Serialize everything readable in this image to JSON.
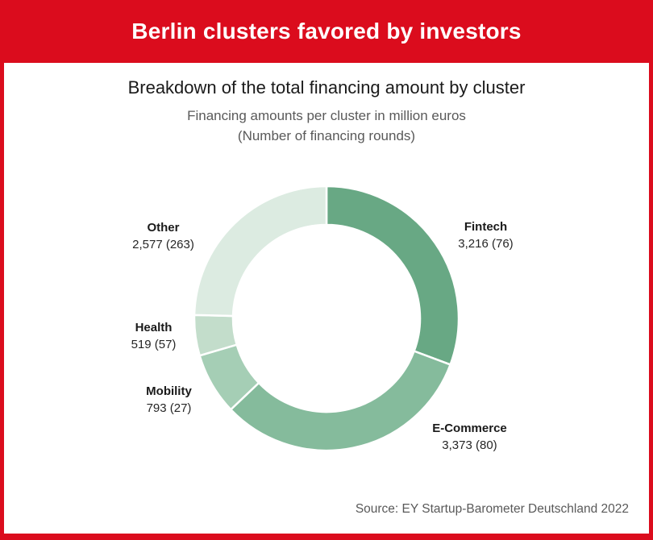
{
  "header": {
    "title": "Berlin clusters favored by investors",
    "background_color": "#db0c1d",
    "text_color": "#ffffff"
  },
  "chart": {
    "title": "Breakdown of the total financing amount by cluster",
    "subtitle_line1": "Financing amounts per cluster in million euros",
    "subtitle_line2": "(Number of financing rounds)"
  },
  "chart_data": {
    "type": "pie",
    "variant": "donut",
    "title": "Breakdown of the total financing amount by cluster",
    "unit": "million euros",
    "start_angle_deg": 0,
    "direction": "clockwise",
    "inner_radius_ratio": 0.71,
    "total": 10478,
    "segments": [
      {
        "label": "Fintech",
        "value": 3216,
        "rounds": 76,
        "display": "3,216 (76)",
        "color": "#68a884"
      },
      {
        "label": "E-Commerce",
        "value": 3373,
        "rounds": 80,
        "display": "3,373 (80)",
        "color": "#85bb9c"
      },
      {
        "label": "Mobility",
        "value": 793,
        "rounds": 27,
        "display": "793 (27)",
        "color": "#a5ceb5"
      },
      {
        "label": "Health",
        "value": 519,
        "rounds": 57,
        "display": "519 (57)",
        "color": "#c3ddcb"
      },
      {
        "label": "Other",
        "value": 2577,
        "rounds": 263,
        "display": "2,577 (263)",
        "color": "#dcebe1"
      }
    ]
  },
  "footer": {
    "source": "Source: EY Startup-Barometer Deutschland 2022"
  }
}
